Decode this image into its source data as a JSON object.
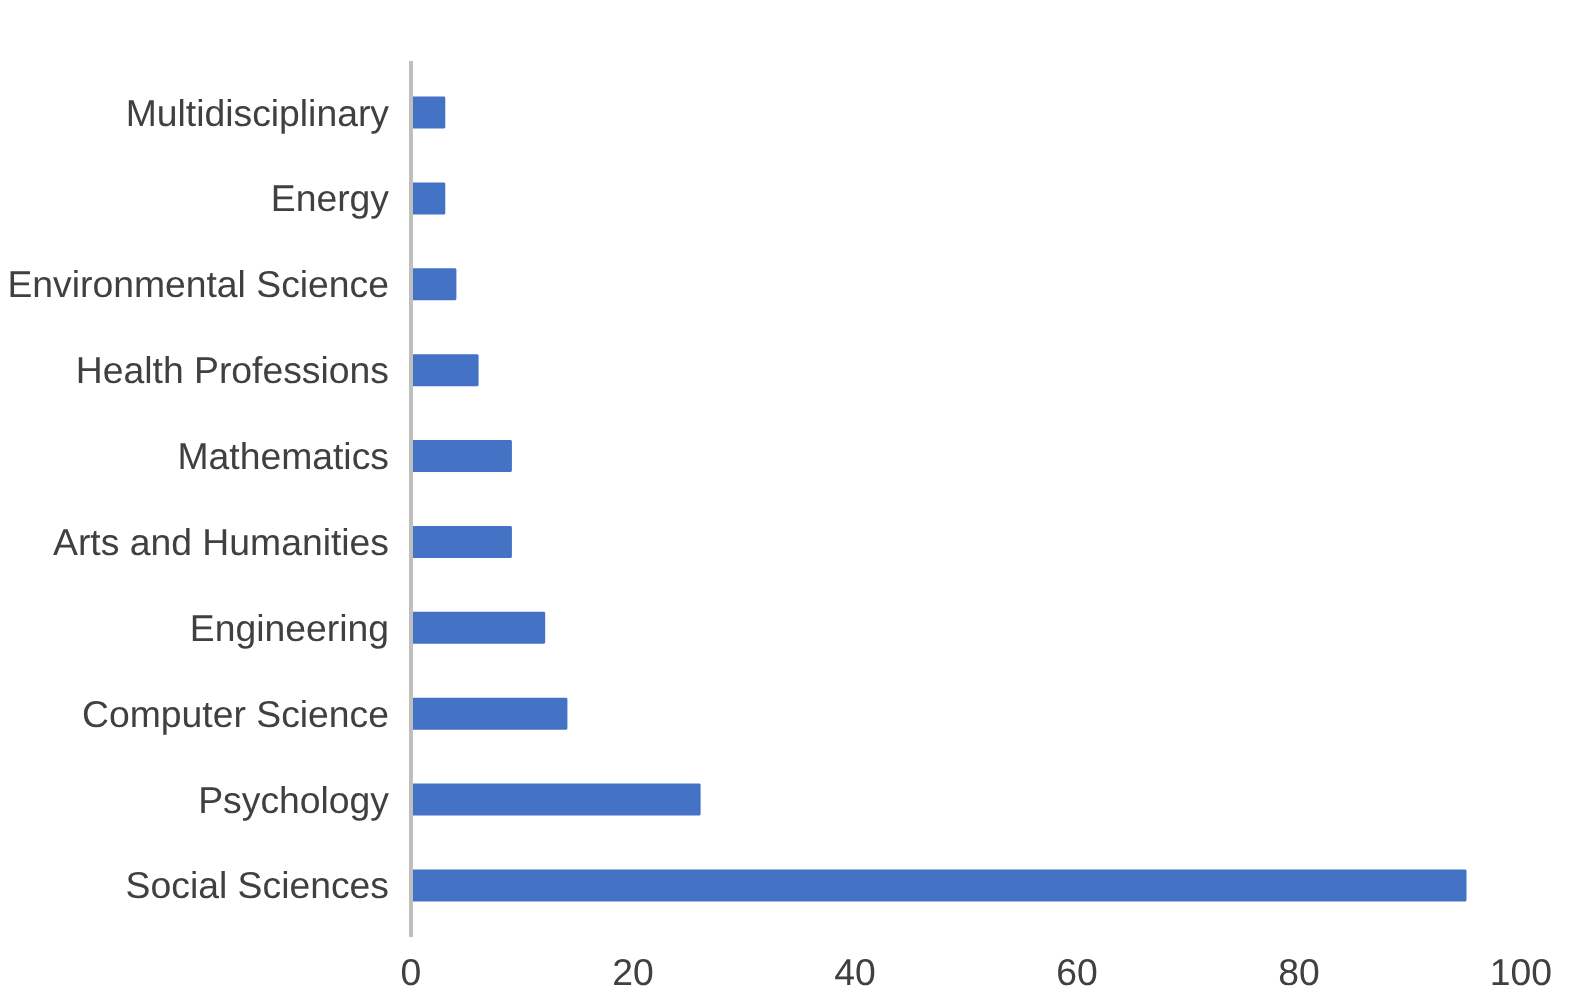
{
  "chart_data": {
    "type": "bar",
    "orientation": "horizontal",
    "categories": [
      "Multidisciplinary",
      "Energy",
      "Environmental Science",
      "Health Professions",
      "Mathematics",
      "Arts and Humanities",
      "Engineering",
      "Computer Science",
      "Psychology",
      "Social Sciences"
    ],
    "values": [
      3,
      3,
      4,
      6,
      9,
      9,
      12,
      14,
      26,
      95
    ],
    "color": "#4472c4",
    "xlim": [
      0,
      100
    ],
    "xticks": [
      0,
      20,
      40,
      60,
      80,
      100
    ],
    "grid": false
  }
}
